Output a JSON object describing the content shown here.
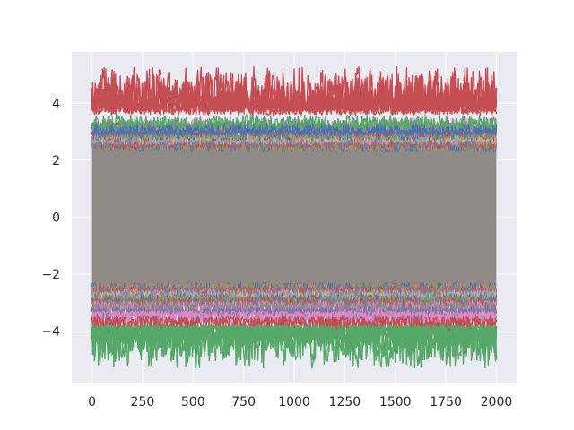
{
  "chart_data": {
    "type": "line",
    "title": "",
    "xlabel": "",
    "ylabel": "",
    "xlim": [
      -100,
      2100
    ],
    "ylim": [
      -5.8,
      5.8
    ],
    "x_ticks": [
      0,
      250,
      500,
      750,
      1000,
      1250,
      1500,
      1750,
      2000
    ],
    "y_ticks": [
      -4,
      -2,
      0,
      2,
      4
    ],
    "x_tick_labels": [
      "0",
      "250",
      "500",
      "750",
      "1000",
      "1250",
      "1500",
      "1750",
      "2000"
    ],
    "y_tick_labels": [
      "−4",
      "−2",
      "0",
      "2",
      "4"
    ],
    "grid": true,
    "background": "#eaeaf2",
    "grid_color": "#ffffff",
    "n_points_per_series": 2000,
    "series_description": "many overlapping noisy series spanning y approximately -5.3 to 5.3; dense grey core between -3 and 3; topmost envelope red (~3.6-5.3), bottom envelope green (~-5.3 to -3.8)",
    "series": [
      {
        "color": "#c44e52",
        "approx_range": [
          3.6,
          5.3
        ]
      },
      {
        "color": "#55a868",
        "approx_range": [
          3.1,
          3.6
        ]
      },
      {
        "color": "#4c72b0",
        "approx_range": [
          2.9,
          3.3
        ]
      },
      {
        "color": "#8c8c8c",
        "approx_range": [
          -3.0,
          3.0
        ]
      },
      {
        "color": "#8172b3",
        "approx_range": [
          -3.9,
          -3.2
        ]
      },
      {
        "color": "#da8bc3",
        "approx_range": [
          -3.9,
          -3.3
        ]
      },
      {
        "color": "#c44e52",
        "approx_range": [
          -4.4,
          -3.5
        ]
      },
      {
        "color": "#55a868",
        "approx_range": [
          -5.3,
          -3.8
        ]
      }
    ]
  }
}
